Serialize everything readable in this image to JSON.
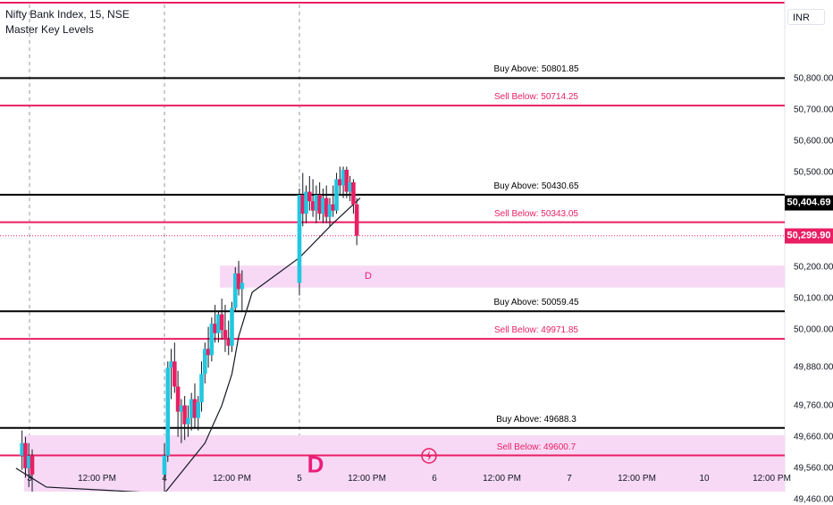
{
  "header": {
    "title": "Nifty Bank Index, 15, NSE",
    "indicator": "Master Key Levels"
  },
  "currency": "INR",
  "colors": {
    "buy_line": "#000000",
    "sell_line": "#e91e63",
    "zone_fill": "#f7d9f5",
    "candle_up": "#22c7e0",
    "candle_down": "#e91e63",
    "ma_line": "#131722"
  },
  "price_tags": [
    {
      "value": "50,404.69",
      "bg": "#000000"
    },
    {
      "value": "50,299.90",
      "bg": "#e91e63"
    }
  ],
  "zones": [
    {
      "label": "D",
      "from": 50135,
      "to": 50205,
      "start_x": 2.9
    },
    {
      "label": "D",
      "from": 49475,
      "to": 49665,
      "start_x": 0
    }
  ],
  "levels": [
    {
      "label": "Buy Above: 50801.85",
      "value": 50801.85,
      "type": "buy"
    },
    {
      "label": "Sell Below: 50714.25",
      "value": 50714.25,
      "type": "sell"
    },
    {
      "label": "Buy Above: 50430.65",
      "value": 50430.65,
      "type": "buy"
    },
    {
      "label": "Sell Below: 50343.05",
      "value": 50343.05,
      "type": "sell"
    },
    {
      "label": "Buy Above: 50059.45",
      "value": 50059.45,
      "type": "buy"
    },
    {
      "label": "Sell Below: 49971.85",
      "value": 49971.85,
      "type": "sell"
    },
    {
      "label": "Buy Above: 49688.3",
      "value": 49688.3,
      "type": "buy"
    },
    {
      "label": "Sell Below: 49600.7",
      "value": 49600.7,
      "type": "sell"
    }
  ],
  "chart_data": {
    "type": "candlestick",
    "title": "Nifty Bank Index, 15, NSE",
    "y_ticks": [
      "50,800.00",
      "50,700.00",
      "50,600.00",
      "50,500.00",
      "50,200.00",
      "50,100.00",
      "50,000.00",
      "49,880.00",
      "49,760.00",
      "49,660.00",
      "49,560.00",
      "49,460.00"
    ],
    "y_tick_values": [
      50800,
      50700,
      50600,
      50500,
      50200,
      50100,
      50000,
      49880,
      49760,
      49660,
      49560,
      49460
    ],
    "ylim": [
      49410,
      51070
    ],
    "x_ticks": [
      "3",
      "12:00 PM",
      "4",
      "12:00 PM",
      "5",
      "12:00 PM",
      "6",
      "12:00 PM",
      "7",
      "12:00 PM",
      "10",
      "12:00 PM"
    ],
    "x_tick_values": [
      0,
      1,
      2,
      3,
      4,
      5,
      6,
      7,
      8,
      9,
      10,
      11
    ],
    "session_starts": [
      0,
      2,
      4
    ],
    "candles": [
      [
        -0.11,
        49600,
        49680,
        49555,
        49640
      ],
      [
        -0.06,
        49640,
        49660,
        49530,
        49560
      ],
      [
        -0.01,
        49560,
        49640,
        49500,
        49600
      ],
      [
        0.04,
        49600,
        49620,
        49480,
        49540
      ],
      [
        2.0,
        49540,
        49640,
        49470,
        49600
      ],
      [
        2.05,
        49600,
        49900,
        49580,
        49880
      ],
      [
        2.1,
        49880,
        49940,
        49780,
        49900
      ],
      [
        2.15,
        49900,
        49960,
        49800,
        49820
      ],
      [
        2.2,
        49820,
        49870,
        49660,
        49740
      ],
      [
        2.25,
        49740,
        49780,
        49640,
        49760
      ],
      [
        2.3,
        49760,
        49790,
        49650,
        49700
      ],
      [
        2.35,
        49700,
        49760,
        49660,
        49720
      ],
      [
        2.4,
        49720,
        49800,
        49680,
        49780
      ],
      [
        2.45,
        49780,
        49830,
        49690,
        49720
      ],
      [
        2.5,
        49720,
        49790,
        49680,
        49770
      ],
      [
        2.55,
        49770,
        49900,
        49740,
        49860
      ],
      [
        2.6,
        49860,
        49960,
        49830,
        49940
      ],
      [
        2.65,
        49940,
        50010,
        49880,
        49920
      ],
      [
        2.7,
        49920,
        50040,
        49900,
        50020
      ],
      [
        2.75,
        50020,
        50080,
        49960,
        49990
      ],
      [
        2.8,
        49990,
        50060,
        49960,
        50050
      ],
      [
        2.85,
        50050,
        50100,
        49970,
        50000
      ],
      [
        2.9,
        50000,
        50080,
        49930,
        49970
      ],
      [
        2.95,
        49970,
        50030,
        49920,
        49950
      ],
      [
        3.0,
        49950,
        50090,
        49930,
        50070
      ],
      [
        3.05,
        50070,
        50200,
        50060,
        50180
      ],
      [
        3.1,
        50180,
        50220,
        50110,
        50130
      ],
      [
        3.15,
        50130,
        50190,
        50060,
        50150
      ],
      [
        4.0,
        50150,
        50450,
        50110,
        50430
      ],
      [
        4.05,
        50430,
        50500,
        50330,
        50370
      ],
      [
        4.1,
        50370,
        50460,
        50340,
        50440
      ],
      [
        4.15,
        50440,
        50490,
        50380,
        50410
      ],
      [
        4.2,
        50410,
        50480,
        50360,
        50380
      ],
      [
        4.25,
        50380,
        50460,
        50340,
        50430
      ],
      [
        4.3,
        50430,
        50470,
        50350,
        50370
      ],
      [
        4.35,
        50370,
        50450,
        50340,
        50420
      ],
      [
        4.4,
        50420,
        50460,
        50340,
        50360
      ],
      [
        4.45,
        50360,
        50420,
        50330,
        50400
      ],
      [
        4.5,
        50400,
        50460,
        50360,
        50380
      ],
      [
        4.55,
        50380,
        50500,
        50370,
        50480
      ],
      [
        4.6,
        50480,
        50520,
        50430,
        50460
      ],
      [
        4.65,
        50460,
        50520,
        50420,
        50510
      ],
      [
        4.7,
        50510,
        50520,
        50420,
        50440
      ],
      [
        4.75,
        50440,
        50490,
        50410,
        50470
      ],
      [
        4.8,
        50470,
        50480,
        50370,
        50400
      ],
      [
        4.85,
        50400,
        50420,
        50270,
        50300
      ]
    ],
    "ma": [
      [
        -0.2,
        49560
      ],
      [
        0.1,
        49520
      ],
      [
        0.25,
        49500
      ],
      [
        2.0,
        49480
      ],
      [
        2.3,
        49560
      ],
      [
        2.6,
        49640
      ],
      [
        2.85,
        49760
      ],
      [
        3.0,
        49860
      ],
      [
        3.1,
        49980
      ],
      [
        3.3,
        50120
      ],
      [
        4.0,
        50230
      ],
      [
        4.5,
        50340
      ],
      [
        4.9,
        50420
      ]
    ]
  }
}
